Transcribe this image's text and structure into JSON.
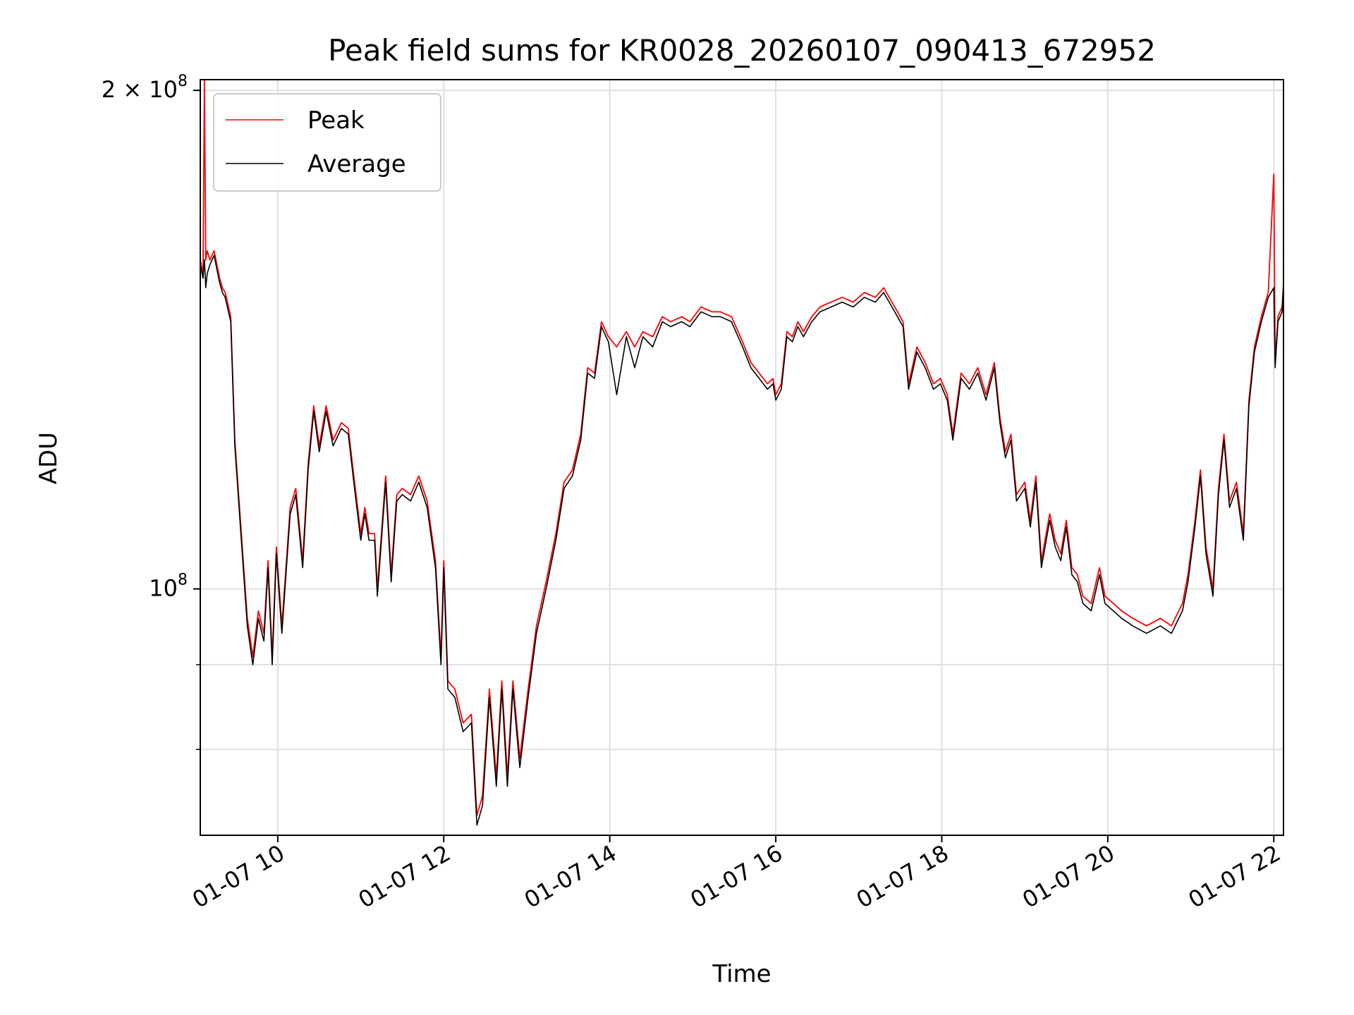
{
  "chart_data": {
    "type": "line",
    "title": "Peak field sums for KR0028_20260107_090413_672952",
    "xlabel": "Time",
    "ylabel": "ADU",
    "y_scale": "log",
    "ylim": [
      71000000,
      203000000
    ],
    "xlim": [
      "01-07 09:04",
      "01-07 22:07"
    ],
    "grid": true,
    "legend_position": "top-left",
    "x_ticks": [
      {
        "value": "01-07 10:00",
        "label": "01-07 10"
      },
      {
        "value": "01-07 12:00",
        "label": "01-07 12"
      },
      {
        "value": "01-07 14:00",
        "label": "01-07 14"
      },
      {
        "value": "01-07 16:00",
        "label": "01-07 16"
      },
      {
        "value": "01-07 18:00",
        "label": "01-07 18"
      },
      {
        "value": "01-07 20:00",
        "label": "01-07 20"
      },
      {
        "value": "01-07 22:00",
        "label": "01-07 22"
      }
    ],
    "y_ticks": [
      {
        "value": 200000000,
        "mantissa": "2",
        "exponent": "8"
      },
      {
        "value": 100000000,
        "mantissa": "",
        "exponent": "8"
      }
    ],
    "y_minor_ticks": [
      90000000,
      80000000
    ],
    "series": [
      {
        "name": "Peak",
        "color": "#ff0000",
        "x": [
          "01-07 09:04",
          "01-07 09:06",
          "01-07 09:07",
          "01-07 09:08",
          "01-07 09:09",
          "01-07 09:11",
          "01-07 09:14",
          "01-07 09:18",
          "01-07 09:20",
          "01-07 09:22",
          "01-07 09:26",
          "01-07 09:29",
          "01-07 09:33",
          "01-07 09:38",
          "01-07 09:42",
          "01-07 09:46",
          "01-07 09:50",
          "01-07 09:53",
          "01-07 09:56",
          "01-07 09:59",
          "01-07 10:03",
          "01-07 10:09",
          "01-07 10:13",
          "01-07 10:18",
          "01-07 10:22",
          "01-07 10:26",
          "01-07 10:30",
          "01-07 10:35",
          "01-07 10:40",
          "01-07 10:46",
          "01-07 10:51",
          "01-07 10:55",
          "01-07 11:00",
          "01-07 11:03",
          "01-07 11:06",
          "01-07 11:10",
          "01-07 11:12",
          "01-07 11:18",
          "01-07 11:22",
          "01-07 11:26",
          "01-07 11:30",
          "01-07 11:36",
          "01-07 11:42",
          "01-07 11:48",
          "01-07 11:54",
          "01-07 11:58",
          "01-07 12:00",
          "01-07 12:03",
          "01-07 12:08",
          "01-07 12:14",
          "01-07 12:20",
          "01-07 12:24",
          "01-07 12:28",
          "01-07 12:33",
          "01-07 12:38",
          "01-07 12:42",
          "01-07 12:46",
          "01-07 12:50",
          "01-07 12:55",
          "01-07 13:01",
          "01-07 13:07",
          "01-07 13:14",
          "01-07 13:21",
          "01-07 13:27",
          "01-07 13:33",
          "01-07 13:39",
          "01-07 13:44",
          "01-07 13:49",
          "01-07 13:54",
          "01-07 13:59",
          "01-07 14:05",
          "01-07 14:12",
          "01-07 14:18",
          "01-07 14:24",
          "01-07 14:31",
          "01-07 14:38",
          "01-07 14:44",
          "01-07 14:52",
          "01-07 14:58",
          "01-07 15:06",
          "01-07 15:14",
          "01-07 15:20",
          "01-07 15:28",
          "01-07 15:36",
          "01-07 15:42",
          "01-07 15:48",
          "01-07 15:54",
          "01-07 15:58",
          "01-07 16:00",
          "01-07 16:04",
          "01-07 16:08",
          "01-07 16:12",
          "01-07 16:16",
          "01-07 16:20",
          "01-07 16:26",
          "01-07 16:32",
          "01-07 16:40",
          "01-07 16:48",
          "01-07 16:56",
          "01-07 17:04",
          "01-07 17:12",
          "01-07 17:18",
          "01-07 17:24",
          "01-07 17:28",
          "01-07 17:32",
          "01-07 17:36",
          "01-07 17:42",
          "01-07 17:48",
          "01-07 17:54",
          "01-07 17:59",
          "01-07 18:04",
          "01-07 18:08",
          "01-07 18:14",
          "01-07 18:20",
          "01-07 18:26",
          "01-07 18:32",
          "01-07 18:38",
          "01-07 18:42",
          "01-07 18:46",
          "01-07 18:50",
          "01-07 18:54",
          "01-07 19:00",
          "01-07 19:04",
          "01-07 19:08",
          "01-07 19:12",
          "01-07 19:18",
          "01-07 19:22",
          "01-07 19:26",
          "01-07 19:30",
          "01-07 19:34",
          "01-07 19:38",
          "01-07 19:42",
          "01-07 19:48",
          "01-07 19:54",
          "01-07 19:58",
          "01-07 20:04",
          "01-07 20:10",
          "01-07 20:18",
          "01-07 20:28",
          "01-07 20:38",
          "01-07 20:46",
          "01-07 20:54",
          "01-07 20:58",
          "01-07 21:03",
          "01-07 21:07",
          "01-07 21:11",
          "01-07 21:16",
          "01-07 21:20",
          "01-07 21:24",
          "01-07 21:28",
          "01-07 21:33",
          "01-07 21:38",
          "01-07 21:42",
          "01-07 21:46",
          "01-07 21:51",
          "01-07 21:56",
          "01-07 22:00",
          "01-07 22:01",
          "01-07 22:03",
          "01-07 22:06",
          "01-07 22:07"
        ],
        "values": [
          158000000,
          155000000,
          203000000,
          158000000,
          160000000,
          158000000,
          160000000,
          154000000,
          152000000,
          151000000,
          146000000,
          123000000,
          110000000,
          96000000,
          91000000,
          97000000,
          94000000,
          104000000,
          91000000,
          106000000,
          95000000,
          112000000,
          115000000,
          104000000,
          119000000,
          129000000,
          122000000,
          129000000,
          123000000,
          126000000,
          125000000,
          117000000,
          108000000,
          112000000,
          108000000,
          108000000,
          100000000,
          117000000,
          102000000,
          114000000,
          115000000,
          114000000,
          117000000,
          113000000,
          104000000,
          91000000,
          104000000,
          88000000,
          87000000,
          83000000,
          84000000,
          73000000,
          75000000,
          87000000,
          77000000,
          88000000,
          77000000,
          88000000,
          79000000,
          87000000,
          95000000,
          101000000,
          108000000,
          116000000,
          118000000,
          124000000,
          136000000,
          135000000,
          145000000,
          142000000,
          140000000,
          143000000,
          140000000,
          143000000,
          142000000,
          146000000,
          145000000,
          146000000,
          145000000,
          148000000,
          147000000,
          147000000,
          146000000,
          141000000,
          137000000,
          135000000,
          133000000,
          134000000,
          131000000,
          133000000,
          143000000,
          142000000,
          145000000,
          143000000,
          146000000,
          148000000,
          149000000,
          150000000,
          149000000,
          151000000,
          150000000,
          152000000,
          149000000,
          147000000,
          145000000,
          133000000,
          140000000,
          137000000,
          133000000,
          134000000,
          131000000,
          124000000,
          135000000,
          133000000,
          136000000,
          131000000,
          137000000,
          127000000,
          121000000,
          124000000,
          114000000,
          116000000,
          110000000,
          117000000,
          104000000,
          111000000,
          107000000,
          105000000,
          110000000,
          103000000,
          102000000,
          99000000,
          98000000,
          103000000,
          99000000,
          98000000,
          97000000,
          96000000,
          95000000,
          96000000,
          95000000,
          98000000,
          102000000,
          110000000,
          118000000,
          106000000,
          100000000,
          115000000,
          124000000,
          113000000,
          116000000,
          108000000,
          130000000,
          140000000,
          146000000,
          151000000,
          178000000,
          137000000,
          146000000,
          148000000,
          153000000
        ]
      },
      {
        "name": "Average",
        "color": "#000000",
        "x": [
          "01-07 09:04",
          "01-07 09:06",
          "01-07 09:07",
          "01-07 09:08",
          "01-07 09:09",
          "01-07 09:11",
          "01-07 09:14",
          "01-07 09:18",
          "01-07 09:20",
          "01-07 09:22",
          "01-07 09:26",
          "01-07 09:29",
          "01-07 09:33",
          "01-07 09:38",
          "01-07 09:42",
          "01-07 09:46",
          "01-07 09:50",
          "01-07 09:53",
          "01-07 09:56",
          "01-07 09:59",
          "01-07 10:03",
          "01-07 10:09",
          "01-07 10:13",
          "01-07 10:18",
          "01-07 10:22",
          "01-07 10:26",
          "01-07 10:30",
          "01-07 10:35",
          "01-07 10:40",
          "01-07 10:46",
          "01-07 10:51",
          "01-07 10:55",
          "01-07 11:00",
          "01-07 11:03",
          "01-07 11:06",
          "01-07 11:10",
          "01-07 11:12",
          "01-07 11:18",
          "01-07 11:22",
          "01-07 11:26",
          "01-07 11:30",
          "01-07 11:36",
          "01-07 11:42",
          "01-07 11:48",
          "01-07 11:54",
          "01-07 11:58",
          "01-07 12:00",
          "01-07 12:03",
          "01-07 12:08",
          "01-07 12:14",
          "01-07 12:20",
          "01-07 12:24",
          "01-07 12:28",
          "01-07 12:33",
          "01-07 12:38",
          "01-07 12:42",
          "01-07 12:46",
          "01-07 12:50",
          "01-07 12:55",
          "01-07 13:01",
          "01-07 13:07",
          "01-07 13:14",
          "01-07 13:21",
          "01-07 13:27",
          "01-07 13:33",
          "01-07 13:39",
          "01-07 13:44",
          "01-07 13:49",
          "01-07 13:54",
          "01-07 13:59",
          "01-07 14:05",
          "01-07 14:12",
          "01-07 14:18",
          "01-07 14:24",
          "01-07 14:31",
          "01-07 14:38",
          "01-07 14:44",
          "01-07 14:52",
          "01-07 14:58",
          "01-07 15:06",
          "01-07 15:14",
          "01-07 15:20",
          "01-07 15:28",
          "01-07 15:36",
          "01-07 15:42",
          "01-07 15:48",
          "01-07 15:54",
          "01-07 15:58",
          "01-07 16:00",
          "01-07 16:04",
          "01-07 16:08",
          "01-07 16:12",
          "01-07 16:16",
          "01-07 16:20",
          "01-07 16:26",
          "01-07 16:32",
          "01-07 16:40",
          "01-07 16:48",
          "01-07 16:56",
          "01-07 17:04",
          "01-07 17:12",
          "01-07 17:18",
          "01-07 17:24",
          "01-07 17:28",
          "01-07 17:32",
          "01-07 17:36",
          "01-07 17:42",
          "01-07 17:48",
          "01-07 17:54",
          "01-07 17:59",
          "01-07 18:04",
          "01-07 18:08",
          "01-07 18:14",
          "01-07 18:20",
          "01-07 18:26",
          "01-07 18:32",
          "01-07 18:38",
          "01-07 18:42",
          "01-07 18:46",
          "01-07 18:50",
          "01-07 18:54",
          "01-07 19:00",
          "01-07 19:04",
          "01-07 19:08",
          "01-07 19:12",
          "01-07 19:18",
          "01-07 19:22",
          "01-07 19:26",
          "01-07 19:30",
          "01-07 19:34",
          "01-07 19:38",
          "01-07 19:42",
          "01-07 19:48",
          "01-07 19:54",
          "01-07 19:58",
          "01-07 20:04",
          "01-07 20:10",
          "01-07 20:18",
          "01-07 20:28",
          "01-07 20:38",
          "01-07 20:46",
          "01-07 20:54",
          "01-07 20:58",
          "01-07 21:03",
          "01-07 21:07",
          "01-07 21:11",
          "01-07 21:16",
          "01-07 21:20",
          "01-07 21:24",
          "01-07 21:28",
          "01-07 21:33",
          "01-07 21:38",
          "01-07 21:42",
          "01-07 21:46",
          "01-07 21:51",
          "01-07 21:56",
          "01-07 22:00",
          "01-07 22:01",
          "01-07 22:03",
          "01-07 22:06",
          "01-07 22:07"
        ],
        "values": [
          157000000,
          154000000,
          158000000,
          152000000,
          155000000,
          157000000,
          159000000,
          153000000,
          151000000,
          150000000,
          145000000,
          122000000,
          109000000,
          95000000,
          90000000,
          96000000,
          93000000,
          103000000,
          90000000,
          105000000,
          94000000,
          111000000,
          114000000,
          103000000,
          118000000,
          128000000,
          121000000,
          128000000,
          122000000,
          125000000,
          124000000,
          116000000,
          107000000,
          111000000,
          107000000,
          107000000,
          99000000,
          116000000,
          101000000,
          113000000,
          114000000,
          113000000,
          116000000,
          112000000,
          103000000,
          90000000,
          103000000,
          87000000,
          86000000,
          82000000,
          83000000,
          72000000,
          74000000,
          86000000,
          76000000,
          87000000,
          76000000,
          87000000,
          78000000,
          86000000,
          94000000,
          100000000,
          107000000,
          115000000,
          117000000,
          123000000,
          135000000,
          134000000,
          144000000,
          141000000,
          131000000,
          142000000,
          136000000,
          142000000,
          140000000,
          145000000,
          144000000,
          145000000,
          144000000,
          147000000,
          146000000,
          146000000,
          145000000,
          140000000,
          136000000,
          134000000,
          132000000,
          133000000,
          130000000,
          132000000,
          142000000,
          141000000,
          144000000,
          142000000,
          145000000,
          147000000,
          148000000,
          149000000,
          148000000,
          150000000,
          149000000,
          151000000,
          148000000,
          146000000,
          144000000,
          132000000,
          139000000,
          136000000,
          132000000,
          133000000,
          130000000,
          123000000,
          134000000,
          132000000,
          135000000,
          130000000,
          136000000,
          126000000,
          120000000,
          123000000,
          113000000,
          115000000,
          109000000,
          116000000,
          103000000,
          110000000,
          106000000,
          104000000,
          109000000,
          102000000,
          101000000,
          98000000,
          97000000,
          102000000,
          98000000,
          97000000,
          96000000,
          95000000,
          94000000,
          95000000,
          94000000,
          97000000,
          101000000,
          109000000,
          117000000,
          105000000,
          99000000,
          114000000,
          123000000,
          112000000,
          115000000,
          107000000,
          129000000,
          139000000,
          145000000,
          150000000,
          152000000,
          136000000,
          145000000,
          147000000,
          152000000
        ]
      }
    ]
  }
}
